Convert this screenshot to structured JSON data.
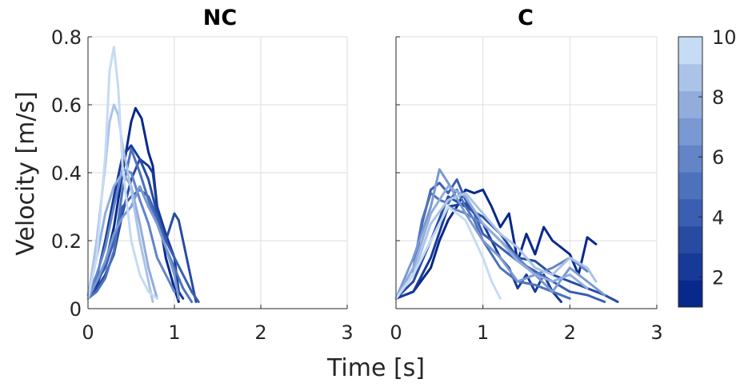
{
  "chart_data": {
    "type": "line",
    "ylabel": "Velocity [m/s]",
    "xlabel": "Time [s]",
    "xlim": [
      0,
      3
    ],
    "ylim": [
      0,
      0.8
    ],
    "xticks": [
      "0",
      "1",
      "2",
      "3"
    ],
    "yticks": [
      "0",
      "0.2",
      "0.4",
      "0.6",
      "0.8"
    ],
    "grid": true,
    "colorbar": {
      "range": [
        1,
        10
      ],
      "ticks": [
        "2",
        "4",
        "6",
        "8",
        "10"
      ],
      "colors": [
        "#08298c",
        "#173a98",
        "#274ba3",
        "#3a5fb0",
        "#4d72bc",
        "#6385c7",
        "#7a99d2",
        "#92addc",
        "#abc3e7",
        "#c6dbf4"
      ]
    },
    "panels": [
      {
        "title": "NC",
        "series": [
          {
            "level": 1,
            "x": [
              0,
              0.1,
              0.2,
              0.3,
              0.4,
              0.5,
              0.55,
              0.62,
              0.7,
              0.75,
              0.8,
              0.9,
              1.0,
              1.05
            ],
            "y": [
              0.03,
              0.07,
              0.13,
              0.24,
              0.4,
              0.55,
              0.59,
              0.56,
              0.46,
              0.42,
              0.3,
              0.15,
              0.06,
              0.02
            ]
          },
          {
            "level": 2,
            "x": [
              0,
              0.1,
              0.2,
              0.3,
              0.4,
              0.5,
              0.6,
              0.7,
              0.75,
              0.8,
              0.9,
              1.0,
              1.05,
              1.1
            ],
            "y": [
              0.04,
              0.09,
              0.2,
              0.33,
              0.45,
              0.48,
              0.44,
              0.42,
              0.4,
              0.3,
              0.22,
              0.15,
              0.05,
              0.03
            ]
          },
          {
            "level": 3,
            "x": [
              0,
              0.1,
              0.2,
              0.3,
              0.4,
              0.5,
              0.6,
              0.7,
              0.8,
              0.9,
              1.0,
              1.05,
              1.1,
              1.2,
              1.25
            ],
            "y": [
              0.03,
              0.06,
              0.1,
              0.16,
              0.28,
              0.38,
              0.44,
              0.38,
              0.28,
              0.2,
              0.28,
              0.26,
              0.2,
              0.08,
              0.02
            ]
          },
          {
            "level": 4,
            "x": [
              0,
              0.1,
              0.2,
              0.3,
              0.4,
              0.5,
              0.6,
              0.7,
              0.8,
              0.9,
              1.0,
              1.1,
              1.2,
              1.28
            ],
            "y": [
              0.03,
              0.08,
              0.12,
              0.2,
              0.3,
              0.33,
              0.35,
              0.33,
              0.27,
              0.2,
              0.15,
              0.1,
              0.05,
              0.02
            ]
          },
          {
            "level": 5,
            "x": [
              0,
              0.1,
              0.2,
              0.3,
              0.4,
              0.5,
              0.6,
              0.7,
              0.8,
              0.9,
              1.0,
              1.1,
              1.2
            ],
            "y": [
              0.03,
              0.05,
              0.09,
              0.17,
              0.35,
              0.47,
              0.4,
              0.32,
              0.25,
              0.18,
              0.12,
              0.06,
              0.02
            ]
          },
          {
            "level": 6,
            "x": [
              0,
              0.1,
              0.2,
              0.3,
              0.4,
              0.5,
              0.6,
              0.7,
              0.8,
              0.9,
              1.0
            ],
            "y": [
              0.04,
              0.1,
              0.18,
              0.3,
              0.41,
              0.4,
              0.32,
              0.25,
              0.15,
              0.1,
              0.05
            ]
          },
          {
            "level": 7,
            "x": [
              0,
              0.1,
              0.2,
              0.3,
              0.4,
              0.5,
              0.6,
              0.7,
              0.8,
              0.9,
              1.0,
              1.05
            ],
            "y": [
              0.03,
              0.08,
              0.14,
              0.22,
              0.27,
              0.3,
              0.36,
              0.3,
              0.25,
              0.18,
              0.1,
              0.03
            ]
          },
          {
            "level": 8,
            "x": [
              0,
              0.1,
              0.2,
              0.3,
              0.4,
              0.5,
              0.6,
              0.7,
              0.8
            ],
            "y": [
              0.04,
              0.15,
              0.28,
              0.36,
              0.4,
              0.36,
              0.25,
              0.12,
              0.03
            ]
          },
          {
            "level": 9,
            "x": [
              0,
              0.1,
              0.2,
              0.25,
              0.3,
              0.35,
              0.4,
              0.5,
              0.6,
              0.7,
              0.75
            ],
            "y": [
              0.03,
              0.2,
              0.42,
              0.55,
              0.6,
              0.57,
              0.48,
              0.35,
              0.2,
              0.08,
              0.02
            ]
          },
          {
            "level": 10,
            "x": [
              0,
              0.1,
              0.2,
              0.25,
              0.3,
              0.35,
              0.4,
              0.5,
              0.6,
              0.7,
              0.8
            ],
            "y": [
              0.03,
              0.15,
              0.45,
              0.7,
              0.77,
              0.65,
              0.42,
              0.2,
              0.1,
              0.05,
              0.03
            ]
          }
        ]
      },
      {
        "title": "C",
        "series": [
          {
            "level": 1,
            "x": [
              0,
              0.2,
              0.4,
              0.5,
              0.6,
              0.7,
              0.8,
              0.9,
              1.0,
              1.1,
              1.2,
              1.3,
              1.4,
              1.5,
              1.6,
              1.7,
              1.8,
              1.9,
              2.0,
              2.1,
              2.2,
              2.3
            ],
            "y": [
              0.03,
              0.05,
              0.12,
              0.2,
              0.26,
              0.3,
              0.35,
              0.34,
              0.35,
              0.3,
              0.24,
              0.28,
              0.14,
              0.22,
              0.16,
              0.24,
              0.2,
              0.18,
              0.16,
              0.1,
              0.21,
              0.19
            ]
          },
          {
            "level": 2,
            "x": [
              0,
              0.2,
              0.4,
              0.6,
              0.8,
              1.0,
              1.1,
              1.2,
              1.3,
              1.4,
              1.5,
              1.6,
              1.7,
              1.8,
              1.9
            ],
            "y": [
              0.03,
              0.05,
              0.15,
              0.3,
              0.31,
              0.25,
              0.2,
              0.15,
              0.12,
              0.06,
              0.1,
              0.05,
              0.1,
              0.05,
              0.02
            ]
          },
          {
            "level": 3,
            "x": [
              0,
              0.2,
              0.4,
              0.6,
              0.8,
              1.0,
              1.2,
              1.4,
              1.6,
              1.8,
              2.0,
              2.2,
              2.4,
              2.55
            ],
            "y": [
              0.03,
              0.08,
              0.2,
              0.33,
              0.3,
              0.27,
              0.22,
              0.15,
              0.14,
              0.1,
              0.08,
              0.06,
              0.04,
              0.02
            ]
          },
          {
            "level": 4,
            "x": [
              0,
              0.2,
              0.3,
              0.4,
              0.5,
              0.6,
              0.7,
              0.8,
              0.9,
              1.0,
              1.2,
              1.4,
              1.6,
              1.8,
              2.0,
              2.2,
              2.4
            ],
            "y": [
              0.03,
              0.1,
              0.25,
              0.35,
              0.37,
              0.34,
              0.38,
              0.32,
              0.28,
              0.22,
              0.18,
              0.14,
              0.11,
              0.08,
              0.05,
              0.04,
              0.02
            ]
          },
          {
            "level": 5,
            "x": [
              0,
              0.2,
              0.3,
              0.4,
              0.5,
              0.6,
              0.7,
              0.8,
              0.9,
              1.0,
              1.2,
              1.4,
              1.6,
              1.8,
              2.0
            ],
            "y": [
              0.03,
              0.12,
              0.26,
              0.34,
              0.32,
              0.31,
              0.35,
              0.3,
              0.26,
              0.2,
              0.12,
              0.08,
              0.07,
              0.05,
              0.03
            ]
          },
          {
            "level": 6,
            "x": [
              0,
              0.2,
              0.4,
              0.6,
              0.8,
              1.0,
              1.2,
              1.4,
              1.6,
              1.8,
              2.0,
              2.2
            ],
            "y": [
              0.03,
              0.1,
              0.2,
              0.3,
              0.28,
              0.25,
              0.2,
              0.15,
              0.1,
              0.12,
              0.15,
              0.11
            ]
          },
          {
            "level": 7,
            "x": [
              0,
              0.2,
              0.4,
              0.5,
              0.6,
              0.8,
              1.0,
              1.2,
              1.4,
              1.6,
              1.8,
              2.0,
              2.2,
              2.4
            ],
            "y": [
              0.03,
              0.15,
              0.3,
              0.41,
              0.37,
              0.28,
              0.2,
              0.15,
              0.08,
              0.1,
              0.05,
              0.12,
              0.08,
              0.04
            ]
          },
          {
            "level": 8,
            "x": [
              0,
              0.2,
              0.4,
              0.6,
              0.8,
              1.0,
              1.2,
              1.4,
              1.6,
              1.8,
              2.0,
              2.2
            ],
            "y": [
              0.03,
              0.12,
              0.28,
              0.36,
              0.33,
              0.25,
              0.2,
              0.14,
              0.1,
              0.08,
              0.1,
              0.06
            ]
          },
          {
            "level": 9,
            "x": [
              0,
              0.2,
              0.4,
              0.6,
              0.8,
              1.0,
              1.2,
              1.4,
              1.6,
              1.8,
              2.0,
              2.2,
              2.3
            ],
            "y": [
              0.03,
              0.1,
              0.25,
              0.32,
              0.34,
              0.28,
              0.22,
              0.18,
              0.12,
              0.1,
              0.15,
              0.12,
              0.08
            ]
          },
          {
            "level": 10,
            "x": [
              0,
              0.2,
              0.4,
              0.6,
              0.8,
              1.0,
              1.1,
              1.2
            ],
            "y": [
              0.03,
              0.1,
              0.2,
              0.3,
              0.26,
              0.15,
              0.08,
              0.03
            ]
          }
        ]
      }
    ]
  }
}
